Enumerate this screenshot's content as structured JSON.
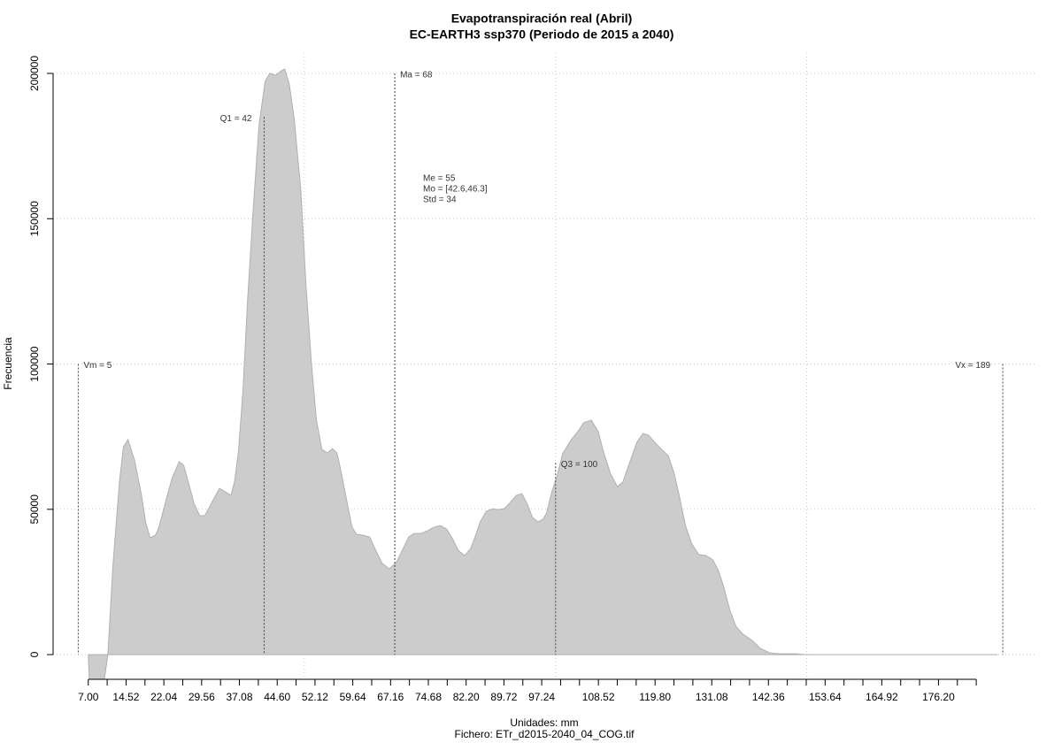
{
  "chart_data": {
    "type": "area",
    "title": "Evapotranspiración real (Abril)",
    "subtitle": "EC-EARTH3 ssp370 (Periodo de 2015 a 2040)",
    "xlabel": "Unidades: mm",
    "caption": "Fichero: ETr_d2015-2040_04_COG.tif",
    "ylabel": "Frecuencia",
    "color": "#cccccc",
    "xlim": [
      0,
      195.5
    ],
    "ylim": [
      -8500,
      207000
    ],
    "xticks": [
      {
        "value": 7,
        "label": "7.00"
      },
      14.52,
      22.04,
      29.56,
      37.08,
      {
        "value": 44.6,
        "label": "44.60"
      },
      52.12,
      59.64,
      67.16,
      74.68,
      {
        "value": 82.2,
        "label": "82.20"
      },
      89.72,
      97.24,
      108.52,
      {
        "value": 119.8,
        "label": "119.80"
      },
      131.08,
      142.36,
      153.64,
      164.92,
      {
        "value": 176.2,
        "label": "176.20"
      }
    ],
    "xticks_minor": [
      10.76,
      18.28,
      25.8,
      33.32,
      40.84,
      48.36,
      55.88,
      63.4,
      70.92,
      78.44,
      85.96,
      93.48,
      101,
      104.76,
      112.28,
      116.04,
      123.56,
      127.32,
      134.84,
      138.6,
      146.12,
      149.88,
      157.4,
      161.16,
      168.68,
      172.44,
      179.96,
      183.72
    ],
    "yticks": [
      0,
      50000,
      100000,
      150000,
      200000
    ],
    "xgrid": [
      50,
      100,
      150
    ],
    "grid": true,
    "x": [
      7,
      7.2,
      10.2,
      10.9,
      11.9,
      13.2,
      14.0,
      14.9,
      16.2,
      17.6,
      18.4,
      19.3,
      20.4,
      21.1,
      22.5,
      23.7,
      25.1,
      26.0,
      26.9,
      28.1,
      29.2,
      30.2,
      31.7,
      33.1,
      34.3,
      35.4,
      36.1,
      36.9,
      37.8,
      38.7,
      39.9,
      41.0,
      42.2,
      43.1,
      44.3,
      45.4,
      46.1,
      47.0,
      48.0,
      49.3,
      50.3,
      51.4,
      52.4,
      53.5,
      54.6,
      55.6,
      56.5,
      57.2,
      58.4,
      59.5,
      60.4,
      61.6,
      63.0,
      64.2,
      65.5,
      66.9,
      68.3,
      69.5,
      70.8,
      71.8,
      73.2,
      74.5,
      75.7,
      77.1,
      78.3,
      79.6,
      80.6,
      81.9,
      83.1,
      84.1,
      85.0,
      86.2,
      87.5,
      88.5,
      89.8,
      91.0,
      92.2,
      93.3,
      94.4,
      95.4,
      96.5,
      97.5,
      98.2,
      99.3,
      100.3,
      101.4,
      103.0,
      104.4,
      105.6,
      107.1,
      108.5,
      109.5,
      110.9,
      112.3,
      113.4,
      114.8,
      116.2,
      117.4,
      118.5,
      119.7,
      121.1,
      122.4,
      123.6,
      124.6,
      125.9,
      127.1,
      128.5,
      129.9,
      131.3,
      132.4,
      133.4,
      134.7,
      135.9,
      137.3,
      139.1,
      140.8,
      142.6,
      144.4,
      147.9,
      149.7,
      188.0
    ],
    "values": [
      0,
      -8500,
      -8500,
      0,
      30400,
      59400,
      71500,
      74000,
      67000,
      54800,
      45700,
      40200,
      41100,
      44100,
      53300,
      60900,
      66400,
      65100,
      59400,
      51700,
      47800,
      47800,
      52700,
      57200,
      56000,
      54800,
      59400,
      70000,
      91300,
      121800,
      155300,
      182600,
      197300,
      200000,
      199400,
      200900,
      201500,
      196300,
      184200,
      159800,
      127900,
      100500,
      80700,
      70600,
      69400,
      70900,
      69400,
      63900,
      53300,
      43800,
      41400,
      41100,
      40500,
      35900,
      31400,
      29500,
      31700,
      35900,
      40500,
      41700,
      41700,
      42600,
      43800,
      44400,
      43200,
      39600,
      35900,
      34100,
      36500,
      41100,
      45700,
      49300,
      50200,
      49900,
      50200,
      52400,
      54800,
      55400,
      51700,
      47200,
      45700,
      46600,
      48700,
      56300,
      61500,
      69100,
      73700,
      76700,
      79800,
      80700,
      76700,
      70000,
      62400,
      57800,
      59400,
      66400,
      73100,
      76100,
      75500,
      73100,
      70600,
      68500,
      62400,
      54800,
      44100,
      38100,
      34400,
      34100,
      32600,
      28900,
      23700,
      15200,
      9700,
      7000,
      4900,
      2100,
      600,
      300,
      300,
      0,
      0
    ],
    "vlines": [
      {
        "label": "Vm = 5",
        "x": 5,
        "ytop": 100000,
        "side": "right"
      },
      {
        "label": "Q1 = 42",
        "x": 42,
        "ytop": 185000,
        "side": "left"
      },
      {
        "label": "Ma = 68",
        "x": 68,
        "ytop": 200000,
        "side": "right"
      },
      {
        "label": "Q3 = 100",
        "x": 100,
        "ytop": 66000,
        "side": "right"
      },
      {
        "label": "Vx = 189",
        "x": 189,
        "ytop": 100000,
        "side": "left"
      }
    ],
    "stats": [
      "Me = 55",
      "Mo = [42.6,46.3]",
      "Std = 34"
    ]
  }
}
